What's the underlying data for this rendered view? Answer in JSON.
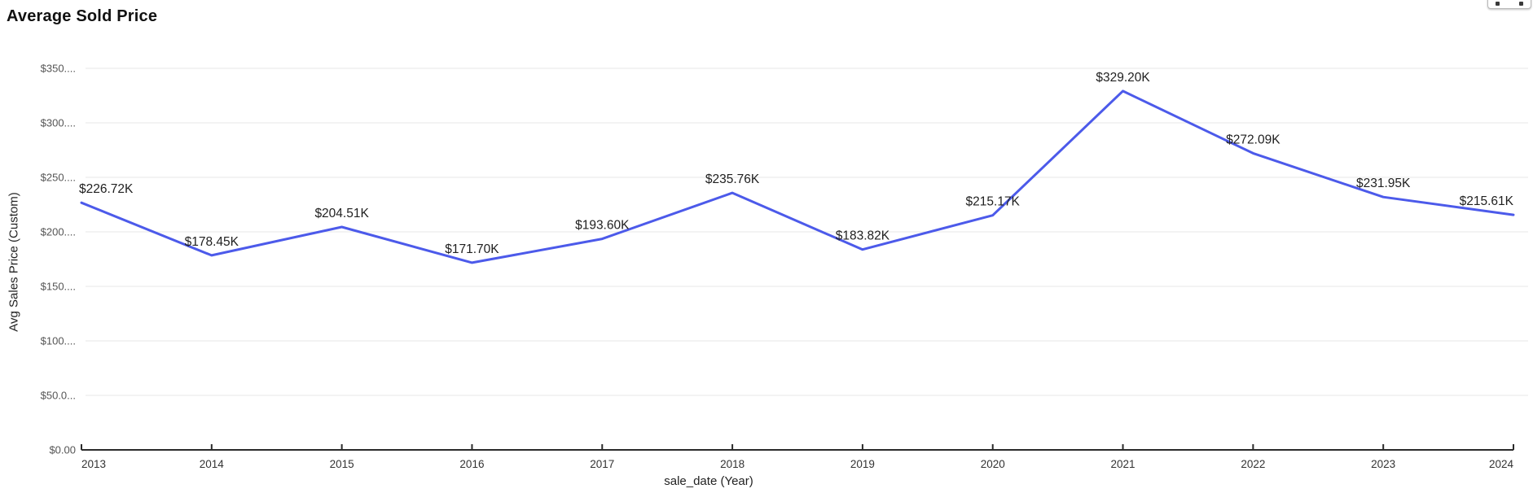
{
  "header": {
    "title": "Average Sold Price"
  },
  "toolbar": {
    "icons": [
      "drag-icon",
      "more-icon"
    ]
  },
  "chart_data": {
    "type": "line",
    "title": "Average Sold Price",
    "xlabel": "sale_date (Year)",
    "ylabel": "Avg Sales Price (Custom)",
    "categories": [
      "2013",
      "2014",
      "2015",
      "2016",
      "2017",
      "2018",
      "2019",
      "2020",
      "2021",
      "2022",
      "2023",
      "2024"
    ],
    "series": [
      {
        "name": "Avg Sales Price (Custom)",
        "values": [
          226.72,
          178.45,
          204.51,
          171.7,
          193.6,
          235.76,
          183.82,
          215.17,
          329.2,
          272.09,
          231.95,
          215.61
        ],
        "labels": [
          "$226.72K",
          "$178.45K",
          "$204.51K",
          "$171.70K",
          "$193.60K",
          "$235.76K",
          "$183.82K",
          "$215.17K",
          "$329.20K",
          "$272.09K",
          "$231.95K",
          "$215.61K"
        ]
      }
    ],
    "ylim": [
      0,
      350
    ],
    "ytick_step": 50,
    "ytick_labels": [
      "$0.00",
      "$50.0...",
      "$100....",
      "$150....",
      "$200....",
      "$250....",
      "$300....",
      "$350...."
    ],
    "grid": true,
    "legend": "none",
    "colors": {
      "line": "#4c5aea",
      "grid": "#e7e7e7",
      "axis": "#2b2b2b",
      "y_tick_label": "#555555",
      "x_tick_label": "#333333",
      "data_label": "#212121"
    }
  }
}
